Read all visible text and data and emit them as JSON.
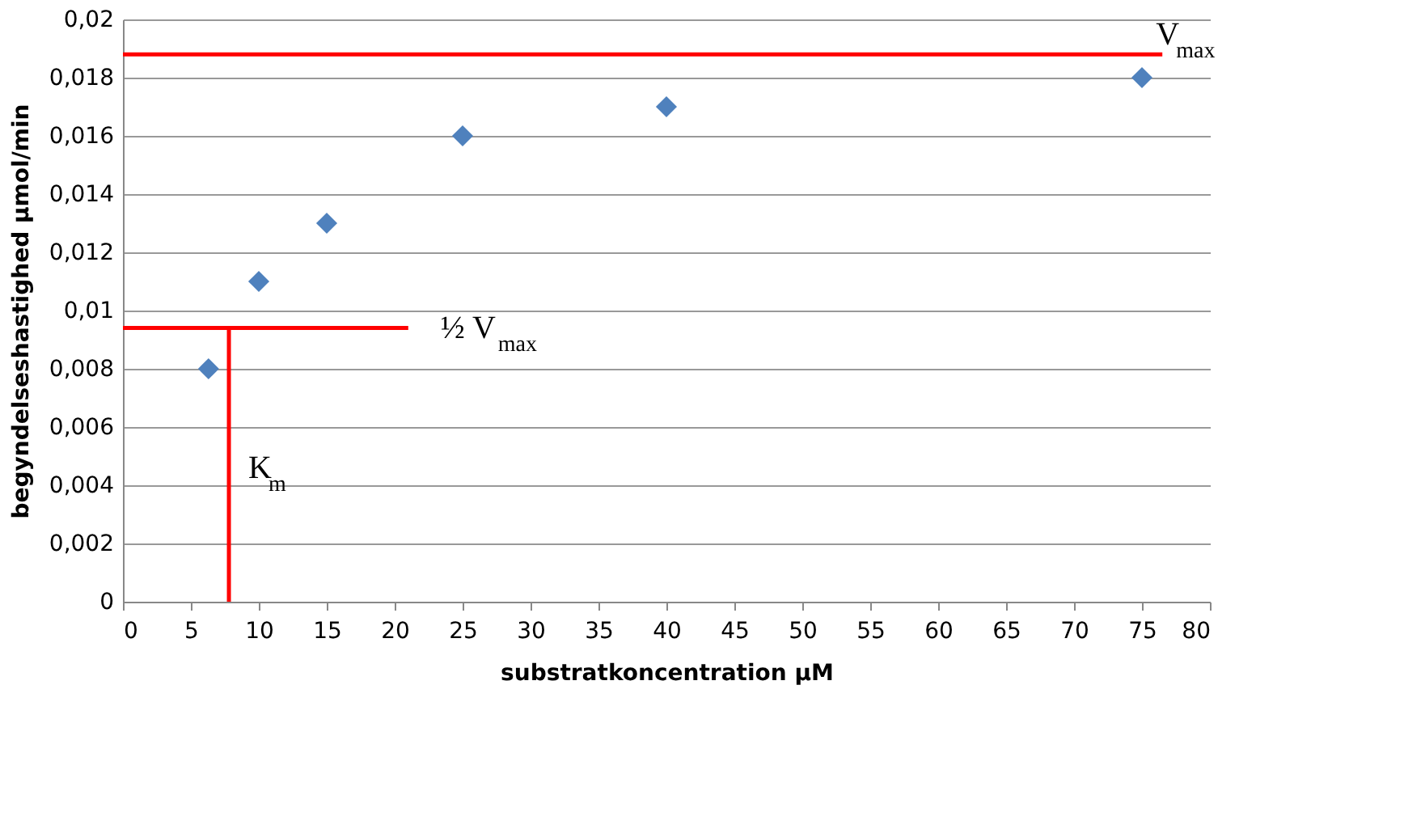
{
  "chart_data": {
    "type": "scatter",
    "xlabel": "substratkoncentration µM",
    "ylabel": "begyndelseshastighed µmol/min",
    "marker": "diamond",
    "grid": "y",
    "xlim": [
      0,
      80
    ],
    "xticks": [
      0,
      5,
      10,
      15,
      20,
      25,
      30,
      35,
      40,
      45,
      50,
      55,
      60,
      65,
      70,
      75,
      80
    ],
    "ylim": [
      0,
      0.02
    ],
    "yticks": [
      {
        "value": 0,
        "label": "0"
      },
      {
        "value": 0.002,
        "label": "0,002"
      },
      {
        "value": 0.004,
        "label": "0,004"
      },
      {
        "value": 0.006,
        "label": "0,006"
      },
      {
        "value": 0.008,
        "label": "0,008"
      },
      {
        "value": 0.01,
        "label": "0,01"
      },
      {
        "value": 0.012,
        "label": "0,012"
      },
      {
        "value": 0.014,
        "label": "0,014"
      },
      {
        "value": 0.016,
        "label": "0,016"
      },
      {
        "value": 0.018,
        "label": "0,018"
      },
      {
        "value": 0.02,
        "label": "0,02"
      }
    ],
    "series": [
      {
        "color": "#4f81bd",
        "x": [
          6.3,
          10,
          15,
          25,
          40,
          75
        ],
        "values": [
          0.008,
          0.011,
          0.013,
          0.016,
          0.017,
          0.018
        ]
      },
      {
        "type": "line",
        "marker": "none",
        "color": "#ff0000",
        "x": [
          0,
          76.5
        ],
        "values": [
          0.0188,
          0.0188
        ]
      },
      {
        "type": "line",
        "marker": "none",
        "color": "#ff0000",
        "x": [
          0,
          21
        ],
        "values": [
          0.0094,
          0.0094
        ]
      },
      {
        "type": "line",
        "marker": "none",
        "color": "#ff0000",
        "x": [
          7.8,
          7.8
        ],
        "values": [
          0,
          0.0094
        ]
      }
    ],
    "annotations": [
      "V$_{max}$",
      "½ V$_{max}$",
      "K$_{m}$"
    ]
  }
}
